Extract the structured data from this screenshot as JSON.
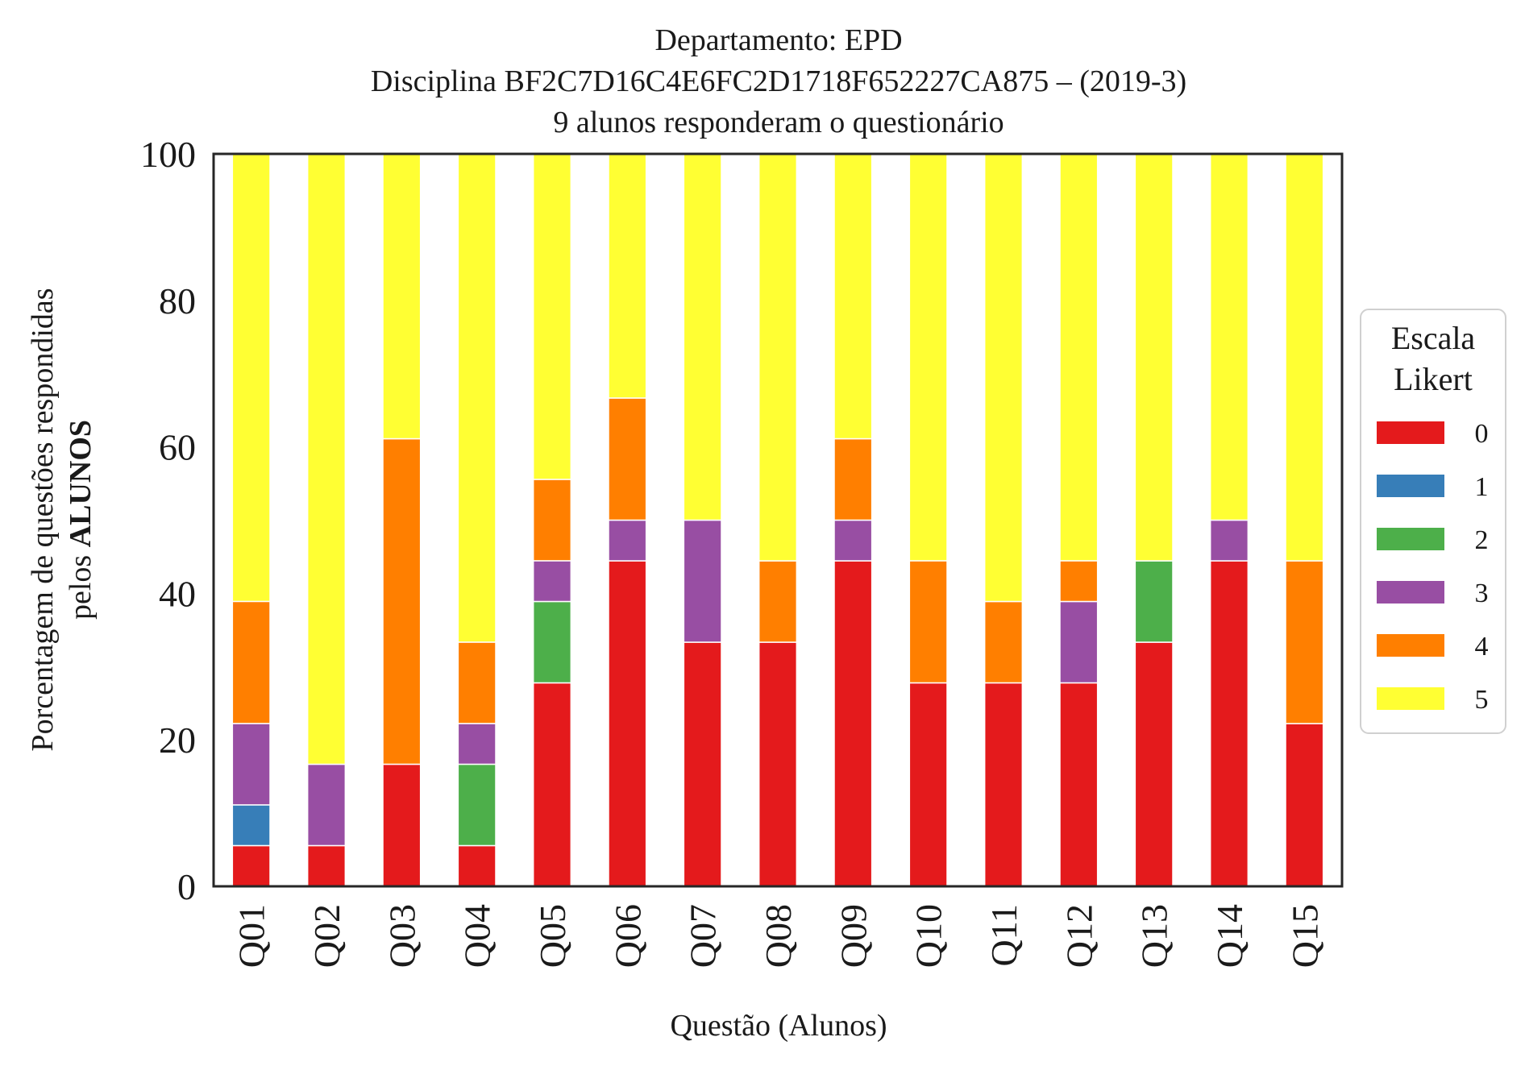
{
  "chart_data": {
    "type": "bar",
    "stacked": true,
    "title": [
      "Departamento: EPD",
      "Disciplina BF2C7D16C4E6FC2D1718F652227CA875 – (2019-3)",
      "9 alunos responderam o questionário"
    ],
    "xlabel": "Questão (Alunos)",
    "ylabel": [
      "Porcentagem de questões respondidas",
      "pelos ",
      "ALUNOS"
    ],
    "ylim": [
      0,
      100
    ],
    "yticks": [
      "0",
      "20",
      "40",
      "60",
      "80",
      "100"
    ],
    "grid": false,
    "legend": {
      "title": [
        "Escala",
        "Likert"
      ],
      "placement": "right"
    },
    "categories": [
      "Q01",
      "Q02",
      "Q03",
      "Q04",
      "Q05",
      "Q06",
      "Q07",
      "Q08",
      "Q09",
      "Q10",
      "Q11",
      "Q12",
      "Q13",
      "Q14",
      "Q15"
    ],
    "series": [
      {
        "name": "0",
        "color": "#e41a1c",
        "values": [
          5.56,
          5.56,
          16.67,
          5.56,
          27.78,
          44.44,
          33.33,
          33.33,
          44.44,
          27.78,
          27.78,
          27.78,
          33.33,
          44.44,
          22.22
        ]
      },
      {
        "name": "1",
        "color": "#377eb8",
        "values": [
          5.56,
          0,
          0,
          0,
          0,
          0,
          0,
          0,
          0,
          0,
          0,
          0,
          0,
          0,
          0
        ]
      },
      {
        "name": "2",
        "color": "#4daf4a",
        "values": [
          0,
          0,
          0,
          11.11,
          11.11,
          0,
          0,
          0,
          0,
          0,
          0,
          0,
          11.11,
          0,
          0
        ]
      },
      {
        "name": "3",
        "color": "#984ea3",
        "values": [
          11.11,
          11.11,
          0,
          5.56,
          5.56,
          5.56,
          16.67,
          0,
          5.56,
          0,
          0,
          11.11,
          0,
          5.56,
          0
        ]
      },
      {
        "name": "4",
        "color": "#ff7f00",
        "values": [
          16.67,
          0,
          44.44,
          11.11,
          11.11,
          16.67,
          0,
          11.11,
          11.11,
          16.67,
          11.11,
          5.56,
          0,
          0,
          22.22
        ]
      },
      {
        "name": "5",
        "color": "#ffff33",
        "values": [
          61.11,
          83.33,
          38.89,
          66.67,
          44.44,
          33.33,
          50.0,
          55.56,
          38.89,
          55.56,
          61.11,
          55.56,
          55.56,
          50.0,
          55.56
        ]
      }
    ]
  }
}
